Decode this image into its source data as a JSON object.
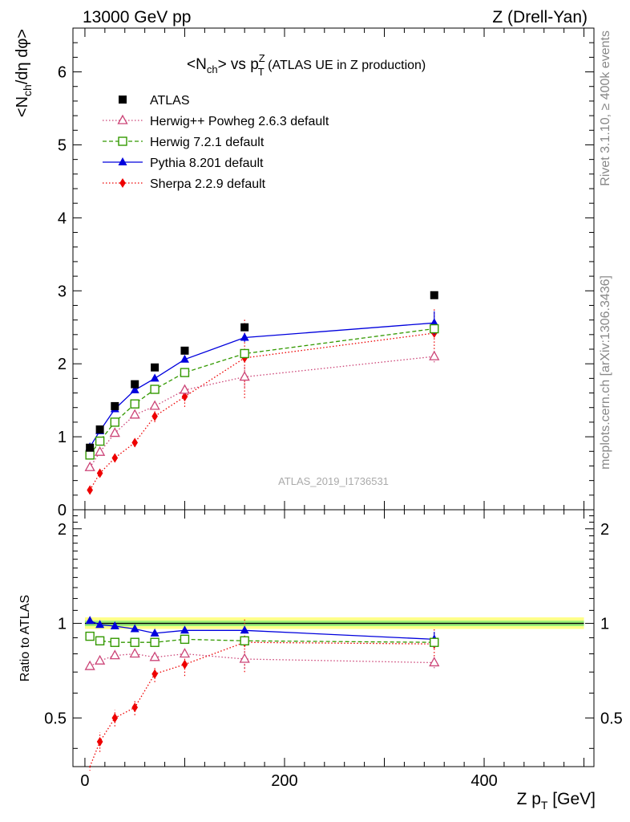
{
  "header": {
    "beam_label": "13000 GeV pp",
    "process_label": "Z (Drell-Yan)"
  },
  "side_labels": {
    "rivet": "Rivet 3.1.10, ≥ 400k events",
    "mcplots": "mcplots.cern.ch [arXiv:1306.3436]"
  },
  "watermark": "ATLAS_2019_I1736531",
  "chart_data": [
    {
      "type": "line",
      "title": "<N_ch> vs p_T^Z (ATLAS UE in Z production)",
      "title_parts": {
        "main": "<N",
        "sub1": "ch",
        "mid": "> vs p",
        "sup2": "Z",
        "sub2": "T",
        "tail": " (ATLAS UE in Z production)"
      },
      "ylabel": "<N_ch/dη dφ>",
      "ylabel_parts": {
        "a": "<N",
        "sub": "ch",
        "b": "/dη dφ>"
      },
      "xlim": [
        -12,
        510
      ],
      "ylim": [
        0,
        6.6
      ],
      "y_ticks": [
        "0",
        "1",
        "2",
        "3",
        "4",
        "5",
        "6"
      ],
      "legend_position": "top-left",
      "x": [
        5,
        15,
        30,
        50,
        70,
        100,
        160,
        350
      ],
      "series": [
        {
          "name": "ATLAS",
          "color": "#000000",
          "marker": "square-filled",
          "line": "none",
          "values": [
            0.85,
            1.1,
            1.42,
            1.72,
            1.95,
            2.18,
            2.5,
            2.94
          ]
        },
        {
          "name": "Herwig++ Powheg 2.6.3 default",
          "color": "#cc4477",
          "marker": "triangle-open",
          "line": "dotted",
          "values": [
            0.58,
            0.79,
            1.05,
            1.3,
            1.42,
            1.64,
            1.82,
            2.1
          ],
          "errors": [
            0.03,
            0.03,
            0.04,
            0.04,
            0.05,
            0.06,
            0.14,
            0.08
          ]
        },
        {
          "name": "Herwig 7.2.1 default",
          "color": "#339900",
          "marker": "square-open",
          "line": "dashed",
          "values": [
            0.75,
            0.94,
            1.2,
            1.45,
            1.65,
            1.88,
            2.14,
            2.48
          ],
          "errors": [
            0.02,
            0.02,
            0.03,
            0.03,
            0.03,
            0.04,
            0.06,
            0.06
          ]
        },
        {
          "name": "Pythia 8.201 default",
          "color": "#0000dd",
          "marker": "triangle-filled",
          "line": "solid",
          "values": [
            0.86,
            1.08,
            1.38,
            1.64,
            1.8,
            2.06,
            2.36,
            2.56
          ],
          "errors": [
            0.02,
            0.02,
            0.03,
            0.03,
            0.03,
            0.04,
            0.06,
            0.16
          ]
        },
        {
          "name": "Sherpa 2.2.9 default",
          "color": "#ee0000",
          "marker": "diamond-filled",
          "line": "dotted",
          "values": [
            0.27,
            0.5,
            0.71,
            0.92,
            1.28,
            1.55,
            2.08,
            2.42
          ],
          "errors": [
            0.03,
            0.04,
            0.05,
            0.06,
            0.08,
            0.14,
            0.55,
            0.35
          ]
        }
      ]
    },
    {
      "type": "line",
      "ylabel": "Ratio to ATLAS",
      "xlabel": "Z p_T [GeV]",
      "xlabel_parts": {
        "a": "Z p",
        "sub": "T",
        "b": " [GeV]"
      },
      "xlim": [
        -12,
        510
      ],
      "ylim": [
        0.35,
        2.3
      ],
      "y_scale": "log",
      "y_ticks": [
        "0.5",
        "1",
        "2"
      ],
      "x_ticks": [
        "0",
        "200",
        "400"
      ],
      "reference_band": {
        "center": 1.0,
        "inner": [
          0.98,
          1.02
        ],
        "outer": [
          0.96,
          1.045
        ]
      },
      "x": [
        5,
        15,
        30,
        50,
        70,
        100,
        160,
        350
      ],
      "series": [
        {
          "name": "Herwig++ Powheg 2.6.3 default",
          "color": "#cc4477",
          "marker": "triangle-open",
          "line": "dotted",
          "values": [
            0.73,
            0.76,
            0.79,
            0.8,
            0.78,
            0.8,
            0.77,
            0.75
          ],
          "errors": [
            0.01,
            0.01,
            0.01,
            0.01,
            0.01,
            0.01,
            0.05,
            0.03
          ]
        },
        {
          "name": "Herwig 7.2.1 default",
          "color": "#339900",
          "marker": "square-open",
          "line": "dashed",
          "values": [
            0.91,
            0.88,
            0.87,
            0.87,
            0.87,
            0.89,
            0.88,
            0.87
          ],
          "errors": [
            0.01,
            0.01,
            0.01,
            0.01,
            0.01,
            0.01,
            0.02,
            0.02
          ]
        },
        {
          "name": "Pythia 8.201 default",
          "color": "#0000dd",
          "marker": "triangle-filled",
          "line": "solid",
          "values": [
            1.02,
            0.99,
            0.98,
            0.96,
            0.93,
            0.95,
            0.95,
            0.89
          ],
          "errors": [
            0.01,
            0.01,
            0.01,
            0.01,
            0.01,
            0.01,
            0.02,
            0.05
          ]
        },
        {
          "name": "Sherpa 2.2.9 default",
          "color": "#ee0000",
          "marker": "diamond-filled",
          "line": "dotted",
          "values": [
            0.32,
            0.42,
            0.5,
            0.54,
            0.69,
            0.74,
            0.87,
            0.86
          ],
          "errors": [
            0.02,
            0.03,
            0.03,
            0.03,
            0.04,
            0.06,
            0.17,
            0.11
          ]
        }
      ]
    }
  ]
}
